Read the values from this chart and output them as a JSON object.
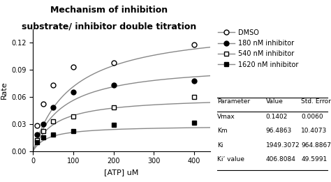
{
  "title_line1": "Mechanism of inhibition",
  "title_line2": "substrate/ inhibitor double titration",
  "xlabel": "[ATP] uM",
  "ylabel": "Rate",
  "xlim": [
    0,
    440
  ],
  "ylim": [
    0,
    0.135
  ],
  "xticks": [
    0,
    100,
    200,
    300,
    400
  ],
  "yticks": [
    0,
    0.03,
    0.06,
    0.09,
    0.12
  ],
  "Vmax": 0.1402,
  "Km": 96.4863,
  "Ki": 1949.3072,
  "Ki_prime": 406.8084,
  "inhibitor_concs": [
    0,
    180,
    540,
    1620
  ],
  "data_points": {
    "DMSO": {
      "x": [
        10,
        25,
        50,
        100,
        200,
        400
      ],
      "y": [
        0.028,
        0.052,
        0.073,
        0.093,
        0.098,
        0.118
      ]
    },
    "180nM": {
      "x": [
        10,
        25,
        50,
        100,
        200,
        400
      ],
      "y": [
        0.018,
        0.03,
        0.048,
        0.065,
        0.073,
        0.078
      ]
    },
    "540nM": {
      "x": [
        10,
        25,
        50,
        100,
        200,
        400
      ],
      "y": [
        0.012,
        0.022,
        0.033,
        0.038,
        0.048,
        0.06
      ]
    },
    "1620nM": {
      "x": [
        10,
        25,
        50,
        100,
        200,
        400
      ],
      "y": [
        0.01,
        0.015,
        0.018,
        0.022,
        0.029,
        0.031
      ]
    }
  },
  "line_color": "#888888",
  "table_data": {
    "headers": [
      "Parameter",
      "Value",
      "Std. Error"
    ],
    "rows": [
      [
        "Vmax",
        "0.1402",
        "0.0060"
      ],
      [
        "Km",
        "96.4863",
        "10.4073"
      ],
      [
        "Ki",
        "1949.3072",
        "964.8867"
      ],
      [
        "Ki’ value",
        "406.8084",
        "49.5991"
      ]
    ]
  }
}
